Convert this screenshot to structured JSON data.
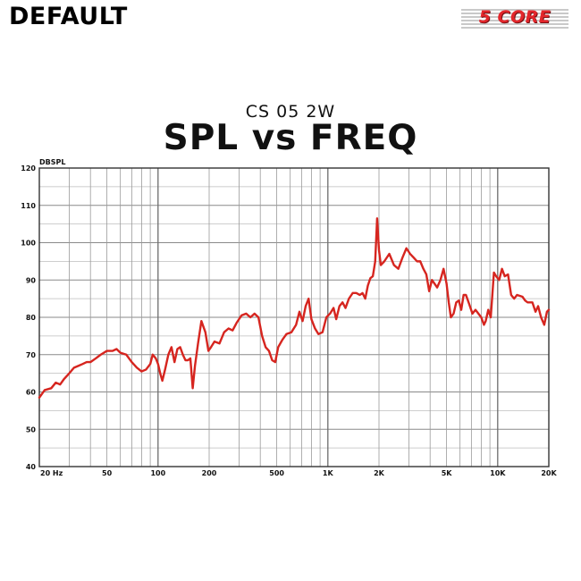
{
  "header": {
    "corner_label": "DEFAULT",
    "logo_text": "5 CORE"
  },
  "chart_data": {
    "type": "line",
    "subtitle": "CS 05 2W",
    "title": "SPL vs FREQ",
    "ylabel": "DBSPL",
    "xlabel": "",
    "x_scale": "log",
    "xlim": [
      20,
      20000
    ],
    "ylim": [
      40,
      120
    ],
    "grid": true,
    "x_tick_labels": [
      {
        "value": 20,
        "label": "20 Hz"
      },
      {
        "value": 50,
        "label": "50"
      },
      {
        "value": 100,
        "label": "100"
      },
      {
        "value": 200,
        "label": "200"
      },
      {
        "value": 500,
        "label": "500"
      },
      {
        "value": 1000,
        "label": "1K"
      },
      {
        "value": 2000,
        "label": "2K"
      },
      {
        "value": 5000,
        "label": "5K"
      },
      {
        "value": 10000,
        "label": "10K"
      },
      {
        "value": 20000,
        "label": "20K"
      }
    ],
    "y_ticks": [
      40,
      50,
      60,
      70,
      80,
      90,
      100,
      110,
      120
    ],
    "line_color": "#d6251f",
    "series": [
      {
        "points": [
          [
            20,
            58.5
          ],
          [
            21.5,
            60.5
          ],
          [
            23.5,
            61
          ],
          [
            25,
            62.5
          ],
          [
            26.5,
            62
          ],
          [
            28,
            63.5
          ],
          [
            30,
            65
          ],
          [
            32,
            66.5
          ],
          [
            34,
            67
          ],
          [
            36,
            67.5
          ],
          [
            38,
            68
          ],
          [
            40,
            68
          ],
          [
            43,
            69
          ],
          [
            46,
            70
          ],
          [
            50,
            71
          ],
          [
            54,
            71
          ],
          [
            57,
            71.5
          ],
          [
            60,
            70.5
          ],
          [
            65,
            70
          ],
          [
            70,
            68
          ],
          [
            75,
            66.5
          ],
          [
            80,
            65.5
          ],
          [
            85,
            66
          ],
          [
            90,
            67.5
          ],
          [
            93,
            70
          ],
          [
            97,
            69
          ],
          [
            100,
            67.5
          ],
          [
            103,
            65
          ],
          [
            106,
            63
          ],
          [
            110,
            66
          ],
          [
            115,
            70
          ],
          [
            120,
            72
          ],
          [
            125,
            68
          ],
          [
            130,
            71.5
          ],
          [
            135,
            72
          ],
          [
            140,
            70
          ],
          [
            145,
            68.5
          ],
          [
            150,
            68.5
          ],
          [
            155,
            69
          ],
          [
            160,
            61
          ],
          [
            165,
            67
          ],
          [
            172,
            73
          ],
          [
            180,
            79
          ],
          [
            190,
            76
          ],
          [
            198,
            71
          ],
          [
            205,
            72
          ],
          [
            215,
            73.5
          ],
          [
            230,
            73
          ],
          [
            245,
            76
          ],
          [
            260,
            77
          ],
          [
            275,
            76.5
          ],
          [
            290,
            78.5
          ],
          [
            310,
            80.5
          ],
          [
            330,
            81
          ],
          [
            350,
            80
          ],
          [
            370,
            81
          ],
          [
            390,
            80
          ],
          [
            410,
            75
          ],
          [
            430,
            72
          ],
          [
            450,
            71
          ],
          [
            470,
            68.5
          ],
          [
            490,
            68
          ],
          [
            510,
            72
          ],
          [
            540,
            74
          ],
          [
            570,
            75.5
          ],
          [
            610,
            76
          ],
          [
            650,
            78
          ],
          [
            680,
            81.5
          ],
          [
            710,
            79
          ],
          [
            740,
            83
          ],
          [
            770,
            85
          ],
          [
            800,
            79.5
          ],
          [
            840,
            77
          ],
          [
            880,
            75.5
          ],
          [
            930,
            76
          ],
          [
            980,
            80
          ],
          [
            1030,
            81
          ],
          [
            1080,
            82.5
          ],
          [
            1120,
            79.5
          ],
          [
            1170,
            83
          ],
          [
            1220,
            84
          ],
          [
            1270,
            82.5
          ],
          [
            1330,
            85
          ],
          [
            1400,
            86.5
          ],
          [
            1470,
            86.5
          ],
          [
            1540,
            86
          ],
          [
            1600,
            86.5
          ],
          [
            1660,
            85
          ],
          [
            1720,
            88.5
          ],
          [
            1780,
            90.5
          ],
          [
            1840,
            91
          ],
          [
            1900,
            95
          ],
          [
            1950,
            106.5
          ],
          [
            2000,
            98
          ],
          [
            2050,
            94
          ],
          [
            2150,
            95
          ],
          [
            2300,
            97
          ],
          [
            2450,
            94
          ],
          [
            2600,
            93
          ],
          [
            2750,
            96
          ],
          [
            2900,
            98.5
          ],
          [
            3050,
            97
          ],
          [
            3200,
            96
          ],
          [
            3350,
            95
          ],
          [
            3500,
            95
          ],
          [
            3650,
            93
          ],
          [
            3800,
            91.5
          ],
          [
            3950,
            87
          ],
          [
            4100,
            90
          ],
          [
            4250,
            89
          ],
          [
            4400,
            88
          ],
          [
            4600,
            90
          ],
          [
            4800,
            93
          ],
          [
            5000,
            89
          ],
          [
            5150,
            84
          ],
          [
            5300,
            80
          ],
          [
            5500,
            81
          ],
          [
            5700,
            84
          ],
          [
            5900,
            84.5
          ],
          [
            6100,
            82
          ],
          [
            6300,
            86
          ],
          [
            6500,
            86
          ],
          [
            6800,
            83.5
          ],
          [
            7100,
            81
          ],
          [
            7400,
            82
          ],
          [
            7700,
            81
          ],
          [
            8000,
            80
          ],
          [
            8300,
            78
          ],
          [
            8500,
            79
          ],
          [
            8800,
            82
          ],
          [
            9100,
            80
          ],
          [
            9300,
            86
          ],
          [
            9500,
            92
          ],
          [
            9800,
            91
          ],
          [
            10200,
            90
          ],
          [
            10600,
            93
          ],
          [
            11000,
            91
          ],
          [
            11500,
            91.5
          ],
          [
            12000,
            86
          ],
          [
            12500,
            85
          ],
          [
            13000,
            86
          ],
          [
            14000,
            85.5
          ],
          [
            14500,
            84.5
          ],
          [
            15000,
            84
          ],
          [
            16000,
            84
          ],
          [
            16700,
            81.5
          ],
          [
            17300,
            83
          ],
          [
            18000,
            80
          ],
          [
            18800,
            78
          ],
          [
            19500,
            81.5
          ],
          [
            20000,
            82
          ]
        ]
      }
    ]
  }
}
